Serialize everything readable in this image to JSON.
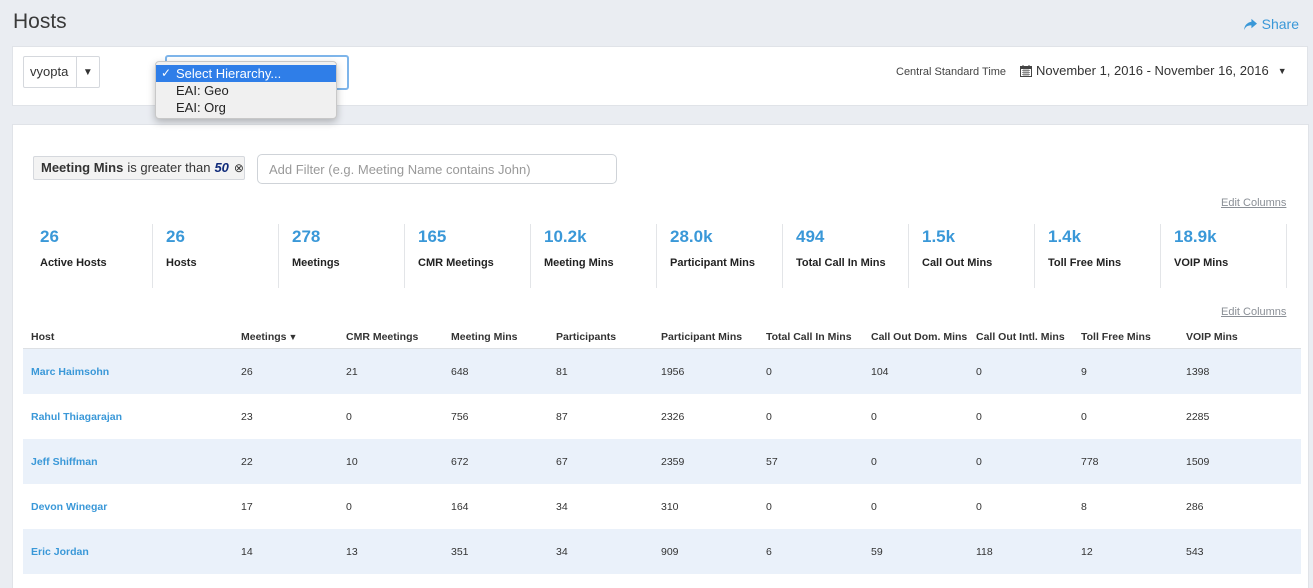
{
  "page": {
    "title": "Hosts",
    "share_label": "Share"
  },
  "toolbar": {
    "account_select": "vyopta",
    "hierarchy_options": [
      "Select Hierarchy...",
      "EAI: Geo",
      "EAI: Org"
    ],
    "timezone": "Central Standard Time",
    "date_range": "November 1, 2016 - November 16, 2016"
  },
  "filter": {
    "field": "Meeting Mins",
    "operator": "is greater than",
    "value": "50",
    "add_placeholder": "Add Filter (e.g. Meeting Name contains John)"
  },
  "edit_columns_label": "Edit Columns",
  "stats": [
    {
      "value": "26",
      "label": "Active Hosts"
    },
    {
      "value": "26",
      "label": "Hosts"
    },
    {
      "value": "278",
      "label": "Meetings"
    },
    {
      "value": "165",
      "label": "CMR Meetings"
    },
    {
      "value": "10.2k",
      "label": "Meeting Mins"
    },
    {
      "value": "28.0k",
      "label": "Participant Mins"
    },
    {
      "value": "494",
      "label": "Total Call In Mins"
    },
    {
      "value": "1.5k",
      "label": "Call Out Mins"
    },
    {
      "value": "1.4k",
      "label": "Toll Free Mins"
    },
    {
      "value": "18.9k",
      "label": "VOIP Mins"
    }
  ],
  "table": {
    "columns": [
      "Host",
      "Meetings",
      "CMR Meetings",
      "Meeting Mins",
      "Participants",
      "Participant Mins",
      "Total Call In Mins",
      "Call Out Dom. Mins",
      "Call Out Intl. Mins",
      "Toll Free Mins",
      "VOIP Mins"
    ],
    "rows": [
      [
        "Marc Haimsohn",
        "26",
        "21",
        "648",
        "81",
        "1956",
        "0",
        "104",
        "0",
        "9",
        "1398"
      ],
      [
        "Rahul Thiagarajan",
        "23",
        "0",
        "756",
        "87",
        "2326",
        "0",
        "0",
        "0",
        "0",
        "2285"
      ],
      [
        "Jeff Shiffman",
        "22",
        "10",
        "672",
        "67",
        "2359",
        "57",
        "0",
        "0",
        "778",
        "1509"
      ],
      [
        "Devon Winegar",
        "17",
        "0",
        "164",
        "34",
        "310",
        "0",
        "0",
        "0",
        "8",
        "286"
      ],
      [
        "Eric Jordan",
        "14",
        "13",
        "351",
        "34",
        "909",
        "6",
        "59",
        "118",
        "12",
        "543"
      ]
    ]
  },
  "colors": {
    "accent": "#3a98d8",
    "row_alt": "#eaf1fa",
    "selected_option": "#2f7ee8"
  },
  "icons": {
    "share": "share-arrow-icon",
    "calendar": "calendar-icon",
    "clear_filter": "close-circle-icon"
  }
}
